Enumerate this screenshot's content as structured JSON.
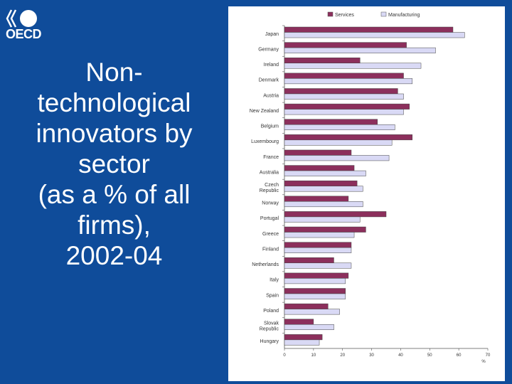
{
  "logo": {
    "text": "OECD"
  },
  "slide": {
    "title_lines": [
      "Non-",
      "technological",
      "innovators by",
      "sector",
      "(as a % of all",
      "firms),",
      "2002-04"
    ]
  },
  "colors": {
    "background": "#0f4c9a",
    "services": "#8c2f5c",
    "manufacturing": "#d9d9f5"
  },
  "chart_data": {
    "type": "bar",
    "orientation": "horizontal",
    "categories": [
      "Japan",
      "Germany",
      "Ireland",
      "Denmark",
      "Austria",
      "New Zealand",
      "Belgium",
      "Luxembourg",
      "France",
      "Australia",
      "Czech Republic",
      "Norway",
      "Portugal",
      "Greece",
      "Finland",
      "Netherlands",
      "Italy",
      "Spain",
      "Poland",
      "Slovak Republic",
      "Hungary"
    ],
    "series": [
      {
        "name": "Services",
        "values": [
          58,
          42,
          26,
          41,
          39,
          43,
          32,
          44,
          23,
          24,
          25,
          22,
          35,
          28,
          23,
          17,
          22,
          21,
          15,
          10,
          13
        ]
      },
      {
        "name": "Manufacturing",
        "values": [
          62,
          52,
          47,
          44,
          41,
          41,
          38,
          37,
          36,
          28,
          27,
          27,
          26,
          24,
          23,
          23,
          21,
          21,
          19,
          17,
          12
        ]
      }
    ],
    "xlim": [
      0,
      70
    ],
    "xticks": [
      "0",
      "10",
      "20",
      "30",
      "40",
      "50",
      "60",
      "70"
    ],
    "xlabel": "%",
    "legend_position": "top"
  }
}
